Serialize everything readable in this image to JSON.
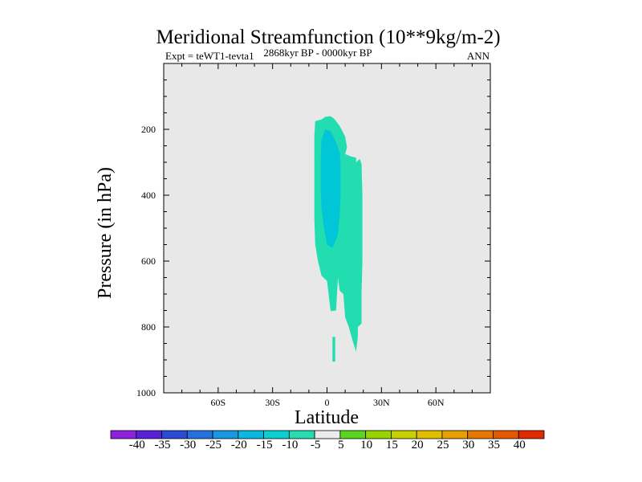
{
  "chart_data": {
    "type": "contour",
    "title": "Meridional Streamfunction (10**9kg/m-2)",
    "left_string": "Expt = teWT1-tevta1",
    "center_string": "2868kyr BP - 0000kyr BP",
    "right_string": "ANN",
    "xlabel": "Latitude",
    "ylabel": "Pressure (in hPa)",
    "xlim": [
      -90,
      90
    ],
    "ylim": [
      1000,
      0
    ],
    "x_major_ticks": [
      -60,
      -30,
      0,
      30,
      60
    ],
    "x_tick_labels": [
      "60S",
      "30S",
      "0",
      "30N",
      "60N"
    ],
    "x_minor_step": 10,
    "y_major_ticks": [
      200,
      400,
      600,
      800,
      1000
    ],
    "y_tick_labels": [
      "200",
      "400",
      "600",
      "800",
      "1000"
    ],
    "y_minor_step": 50,
    "background_color": "#e8e8e8",
    "contour_regions": [
      {
        "name": "level -10 to -5",
        "color": "#22ddb0",
        "polygon": [
          [
            -6.5,
            175
          ],
          [
            -3,
            170
          ],
          [
            -1,
            162
          ],
          [
            2,
            160
          ],
          [
            4,
            168
          ],
          [
            7,
            190
          ],
          [
            10,
            222
          ],
          [
            11,
            255
          ],
          [
            10,
            275
          ],
          [
            13,
            282
          ],
          [
            16,
            286
          ],
          [
            16,
            300
          ],
          [
            18,
            290
          ],
          [
            19,
            305
          ],
          [
            19.5,
            400
          ],
          [
            19.5,
            600
          ],
          [
            19,
            700
          ],
          [
            19,
            790
          ],
          [
            17,
            800
          ],
          [
            17,
            830
          ],
          [
            16,
            875
          ],
          [
            14,
            840
          ],
          [
            12,
            800
          ],
          [
            10,
            770
          ],
          [
            9,
            700
          ],
          [
            7,
            690
          ],
          [
            6,
            650
          ],
          [
            5,
            750
          ],
          [
            2,
            752
          ],
          [
            0,
            660
          ],
          [
            -3,
            645
          ],
          [
            -5,
            600
          ],
          [
            -6.5,
            550
          ],
          [
            -7,
            470
          ],
          [
            -7,
            400
          ],
          [
            -7,
            300
          ],
          [
            -7,
            220
          ]
        ]
      },
      {
        "name": "level -10 to -5 (lower)",
        "color": "#22ddb0",
        "polygon": [
          [
            3,
            830
          ],
          [
            4.5,
            830
          ],
          [
            4.5,
            905
          ],
          [
            3,
            905
          ]
        ]
      },
      {
        "name": "level -15 to -10",
        "color": "#00c6d8",
        "polygon": [
          [
            -3,
            230
          ],
          [
            -1,
            200
          ],
          [
            2,
            205
          ],
          [
            5,
            240
          ],
          [
            7,
            270
          ],
          [
            7.5,
            310
          ],
          [
            7.5,
            400
          ],
          [
            7,
            460
          ],
          [
            6,
            520
          ],
          [
            3,
            560
          ],
          [
            0,
            550
          ],
          [
            -2,
            490
          ],
          [
            -3,
            440
          ],
          [
            -3.5,
            390
          ],
          [
            -3.5,
            300
          ]
        ]
      }
    ],
    "colorbar": {
      "levels": [
        "-40",
        "-35",
        "-30",
        "-25",
        "-20",
        "-15",
        "-10",
        "-5",
        "5",
        "10",
        "15",
        "20",
        "25",
        "30",
        "35",
        "40"
      ],
      "colors": [
        "#8e20de",
        "#5a20d8",
        "#2d4ad6",
        "#2571e0",
        "#1898e2",
        "#0ab8e0",
        "#0bcfd0",
        "#26dcb0",
        "#ececec",
        "#5ad620",
        "#98d400",
        "#c7d000",
        "#e2be00",
        "#e7a000",
        "#e67800",
        "#e55a00",
        "#e02a00"
      ]
    }
  }
}
